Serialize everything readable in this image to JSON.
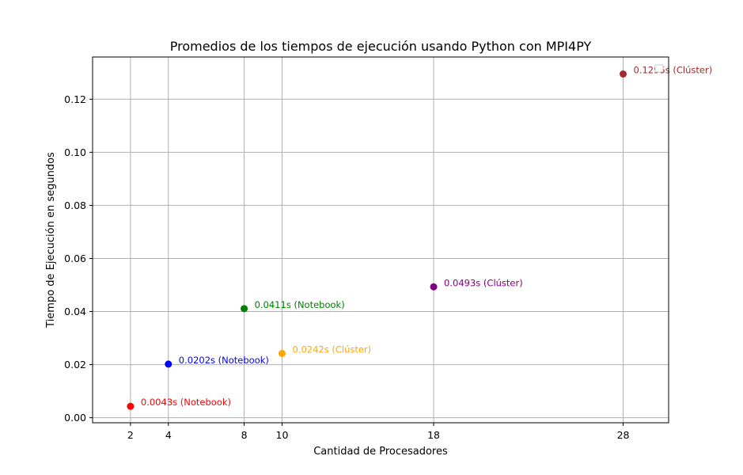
{
  "chart_data": {
    "type": "scatter",
    "title": "Promedios de los tiempos de ejecución usando Python con MPI4PY",
    "xlabel": "Cantidad de Procesadores",
    "ylabel": "Tiempo de Ejecución en segundos",
    "xlim": [
      0,
      30.4
    ],
    "ylim": [
      -0.0019,
      0.1359
    ],
    "grid": true,
    "legend": "top-right",
    "xticks": [
      2,
      4,
      8,
      10,
      18,
      28
    ],
    "yticks": [
      0.0,
      0.02,
      0.04,
      0.06,
      0.08,
      0.1,
      0.12
    ],
    "ytick_labels": [
      "0.00",
      "0.02",
      "0.04",
      "0.06",
      "0.08",
      "0.10",
      "0.12"
    ],
    "points": [
      {
        "x": 2,
        "y": 0.0043,
        "label": "0.0043s (Notebook)",
        "color": "#ff0000"
      },
      {
        "x": 4,
        "y": 0.0202,
        "label": "0.0202s (Notebook)",
        "color": "#0000ff"
      },
      {
        "x": 8,
        "y": 0.0411,
        "label": "0.0411s (Notebook)",
        "color": "#008000"
      },
      {
        "x": 10,
        "y": 0.0242,
        "label": "0.0242s (Clúster)",
        "color": "#ffa500"
      },
      {
        "x": 18,
        "y": 0.0493,
        "label": "0.0493s (Clúster)",
        "color": "#800080"
      },
      {
        "x": 28,
        "y": 0.1295,
        "label": "0.1295s (Clúster)",
        "color": "#a52a2a"
      }
    ]
  }
}
